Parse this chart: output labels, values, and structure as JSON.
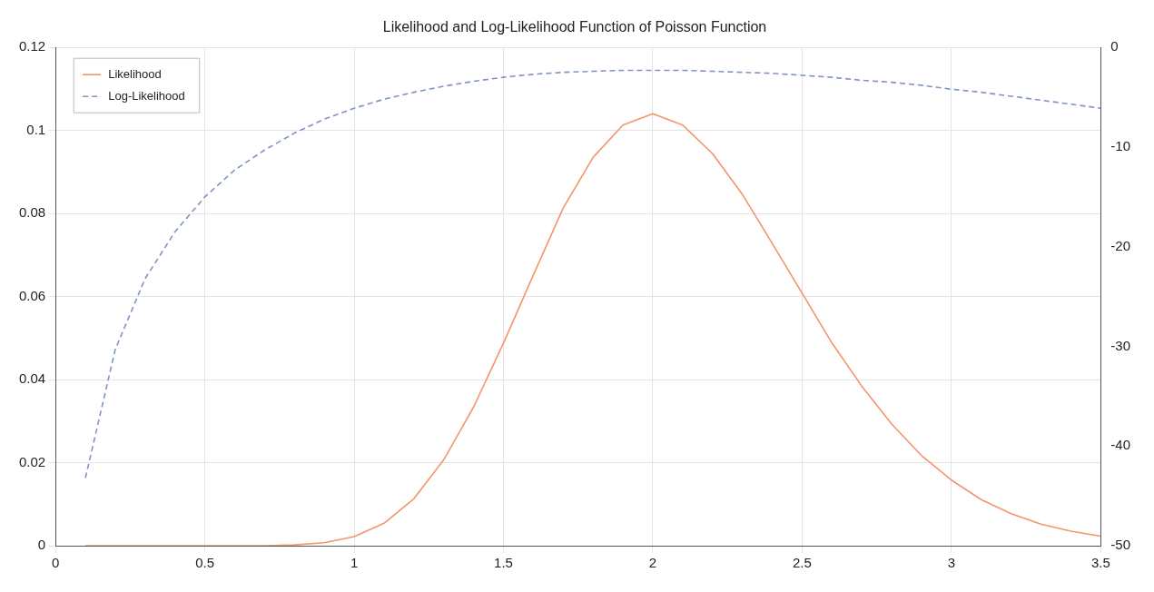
{
  "chart_data": {
    "type": "line",
    "title": "Likelihood and Log-Likelihood Function of Poisson Function",
    "x": [
      0.1,
      0.2,
      0.3,
      0.4,
      0.5,
      0.6,
      0.7,
      0.8,
      0.9,
      1.0,
      1.1,
      1.2,
      1.3,
      1.4,
      1.5,
      1.6,
      1.7,
      1.8,
      1.9,
      2.0,
      2.1,
      2.2,
      2.3,
      2.4,
      2.5,
      2.6,
      2.7,
      2.8,
      2.9,
      3.0,
      3.1,
      3.2,
      3.3,
      3.4,
      3.5
    ],
    "series": [
      {
        "name": "Likelihood",
        "color": "#f4956a",
        "line_style": "solid",
        "values": [
          0,
          0,
          0,
          0,
          0,
          0,
          0,
          0.0002,
          0.0007,
          0.0022,
          0.0054,
          0.0113,
          0.0207,
          0.0334,
          0.0488,
          0.0652,
          0.0813,
          0.0935,
          0.1013,
          0.104,
          0.1013,
          0.0944,
          0.0846,
          0.0728,
          0.0608,
          0.0488,
          0.0384,
          0.0293,
          0.0217,
          0.0158,
          0.0111,
          0.0077,
          0.0052,
          0.0035,
          0.0023
        ]
      },
      {
        "name": "Log-Likelihood",
        "color": "#7f93c4",
        "line_style": "dashed",
        "axis": "y2",
        "values": [
          -43.2,
          -30.3,
          -23.2,
          -18.5,
          -15.0,
          -12.3,
          -10.3,
          -8.6,
          -7.2,
          -6.1,
          -5.2,
          -4.5,
          -3.9,
          -3.4,
          -3.0,
          -2.7,
          -2.5,
          -2.4,
          -2.3,
          -2.3,
          -2.3,
          -2.4,
          -2.5,
          -2.6,
          -2.8,
          -3.0,
          -3.3,
          -3.5,
          -3.8,
          -4.2,
          -4.5,
          -4.9,
          -5.3,
          -5.7,
          -6.1
        ]
      }
    ],
    "xlim": [
      0,
      3.5
    ],
    "xticks": [
      0,
      0.5,
      1,
      1.5,
      2,
      2.5,
      3,
      3.5
    ],
    "ylim": [
      0,
      0.12
    ],
    "yticks": [
      0,
      0.02,
      0.04,
      0.06,
      0.08,
      0.1,
      0.12
    ],
    "y2lim": [
      -50,
      0
    ],
    "y2ticks": [
      -50,
      -40,
      -30,
      -20,
      -10,
      0
    ],
    "grid": true,
    "legend": "top left",
    "marker": "none"
  }
}
